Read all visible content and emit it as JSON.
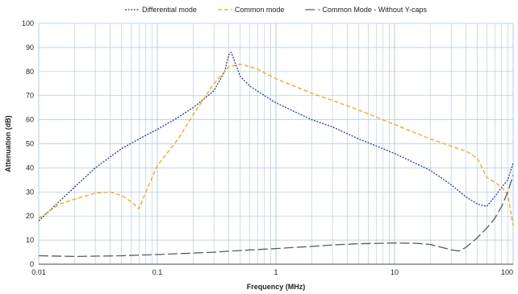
{
  "chart_data": {
    "type": "line",
    "xlabel": "Frequency (MHz)",
    "ylabel": "Attenuation (dB)",
    "x_scale": "log",
    "xlim": [
      0.01,
      100
    ],
    "ylim": [
      0,
      100
    ],
    "x_ticks": [
      0.01,
      0.1,
      1,
      10,
      100
    ],
    "x_tick_labels": [
      "0.01",
      "0.1",
      "1",
      "10",
      "100"
    ],
    "y_ticks": [
      0,
      10,
      20,
      30,
      40,
      50,
      60,
      70,
      80,
      90,
      100
    ],
    "y_tick_labels": [
      "0",
      "10",
      "20",
      "30",
      "40",
      "50",
      "60",
      "70",
      "80",
      "90",
      "100"
    ],
    "grid": true,
    "legend_position": "top",
    "series": [
      {
        "name": "Differential mode",
        "color": "#1f3f99",
        "dash": "dotted",
        "x": [
          0.01,
          0.02,
          0.03,
          0.05,
          0.07,
          0.1,
          0.15,
          0.2,
          0.3,
          0.37,
          0.4,
          0.42,
          0.45,
          0.5,
          0.6,
          0.8,
          1,
          2,
          3,
          5,
          10,
          20,
          30,
          40,
          50,
          60,
          70,
          80,
          90,
          100
        ],
        "y": [
          18,
          32,
          40,
          48,
          52,
          56,
          61,
          65,
          72,
          80,
          87,
          88,
          84,
          78,
          74,
          70,
          67,
          60,
          57,
          52,
          46,
          39,
          33,
          28,
          25,
          24,
          28,
          32,
          35,
          42
        ]
      },
      {
        "name": "Common mode",
        "color": "#f2a900",
        "dash": "dashed",
        "x": [
          0.01,
          0.015,
          0.02,
          0.03,
          0.04,
          0.05,
          0.06,
          0.07,
          0.08,
          0.1,
          0.15,
          0.2,
          0.3,
          0.4,
          0.5,
          0.6,
          0.7,
          1,
          2,
          3,
          5,
          10,
          20,
          30,
          40,
          50,
          60,
          70,
          80,
          90,
          100
        ],
        "y": [
          19,
          25,
          27,
          29.5,
          30,
          28.5,
          26,
          23,
          30,
          41,
          52,
          62,
          75,
          82,
          83,
          82,
          81,
          77,
          71,
          68,
          64,
          58,
          52,
          49,
          47,
          44,
          36,
          34,
          32,
          29,
          16
        ]
      },
      {
        "name": "Common Mode - Without Y-caps",
        "color": "#5a5a5a",
        "dash": "longdash",
        "x": [
          0.01,
          0.02,
          0.05,
          0.1,
          0.2,
          0.3,
          0.5,
          1,
          2,
          3,
          5,
          10,
          15,
          20,
          25,
          30,
          35,
          40,
          50,
          60,
          70,
          80,
          90,
          100
        ],
        "y": [
          3.5,
          3.2,
          3.5,
          4,
          4.6,
          5,
          5.7,
          6.5,
          7.4,
          8,
          8.5,
          8.8,
          8.7,
          8.2,
          7,
          6,
          5.5,
          7,
          11,
          15,
          19,
          24,
          30,
          37
        ]
      }
    ]
  }
}
